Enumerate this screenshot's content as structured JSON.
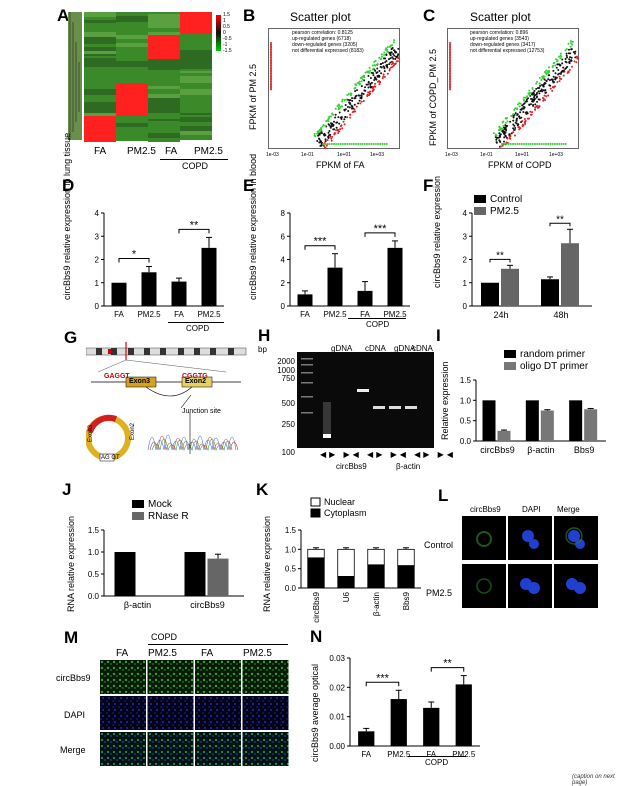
{
  "panels": {
    "A": {
      "letter": "A",
      "legend_ticks": [
        "1.5",
        "1",
        "0.5",
        "0",
        "-0.5",
        "-1",
        "-1.5"
      ],
      "xlabels": [
        "FA",
        "PM2.5",
        "FA",
        "PM2.5"
      ],
      "group": "COPD"
    },
    "B": {
      "letter": "B",
      "title": "Scatter plot",
      "stats": [
        "pearson correlation: 0.8125",
        "up-regulated genes (6718)",
        "down-regulated genes (3205)",
        "not differential expressed (8183)"
      ],
      "xlabel": "FPKM of FA",
      "ylabel": "FPKM of PM 2.5",
      "ticks": [
        "1e-03",
        "1e-01",
        "1e+01",
        "1e+03"
      ]
    },
    "C": {
      "letter": "C",
      "title": "Scatter plot",
      "stats": [
        "pearson correlation: 0.896",
        "up-regulated genes (3543)",
        "down-regulated genes (3417)",
        "not differential expressed (12753)"
      ],
      "xlabel": "FPKM of COPD",
      "ylabel": "FPKM of COPD_PM 2.5",
      "ticks": [
        "1e-03",
        "1e-01",
        "1e+01",
        "1e+03"
      ]
    },
    "D": {
      "letter": "D",
      "ylabel": "circBbs9 relative expression in lung tissue",
      "group": "COPD"
    },
    "E": {
      "letter": "E",
      "ylabel": "circBbs9 relative expression in blood",
      "group": "COPD"
    },
    "F": {
      "letter": "F",
      "ylabel": "circBbs9 relative expression",
      "legend": [
        "Control",
        "PM2.5"
      ]
    },
    "G": {
      "letter": "G",
      "texts": [
        "GAGGT",
        "CGGTG",
        "Exon3",
        "Exon2",
        "Junction site",
        "AG GT",
        "Exon3",
        "Exon2"
      ]
    },
    "H": {
      "letter": "H",
      "bp": "bp",
      "ladder": [
        "2000",
        "1000",
        "750",
        "500",
        "250",
        "100"
      ],
      "lanes": [
        "gDNA",
        "cDNA",
        "gDNA",
        "cDNA"
      ],
      "genes": [
        "circBbs9",
        "β-actin"
      ]
    },
    "I": {
      "letter": "I",
      "ylabel": "Relative expression",
      "legend": [
        "random primer",
        "oligo DT primer"
      ]
    },
    "J": {
      "letter": "J",
      "ylabel": "RNA relative expression",
      "legend": [
        "Mock",
        "RNase R"
      ]
    },
    "K": {
      "letter": "K",
      "ylabel": "RNA relative expression",
      "legend": [
        "Nuclear",
        "Cytoplasm"
      ]
    },
    "L": {
      "letter": "L",
      "cols": [
        "circBbs9",
        "DAPI",
        "Merge"
      ],
      "rows": [
        "Control",
        "PM2.5"
      ]
    },
    "M": {
      "letter": "M",
      "cols": [
        "FA",
        "PM2.5",
        "FA",
        "PM2.5"
      ],
      "rows": [
        "circBbs9",
        "DAPI",
        "Merge"
      ],
      "group": "COPD"
    },
    "N": {
      "letter": "N",
      "ylabel": "circBbs9 average optical",
      "group": "COPD"
    }
  },
  "footer": "(caption on next page)",
  "chart_data": [
    {
      "panel": "D",
      "type": "bar",
      "categories": [
        "FA",
        "PM2.5",
        "FA",
        "PM2.5"
      ],
      "values": [
        1.0,
        1.45,
        1.05,
        2.5
      ],
      "errors": [
        0,
        0.25,
        0.15,
        0.45
      ],
      "ylim": [
        0,
        4
      ],
      "yticks": [
        0,
        1,
        2,
        3,
        4
      ],
      "significance": [
        {
          "pair": [
            0,
            1
          ],
          "label": "*"
        },
        {
          "pair": [
            2,
            3
          ],
          "label": "**"
        }
      ]
    },
    {
      "panel": "E",
      "type": "bar",
      "categories": [
        "FA",
        "PM2.5",
        "FA",
        "PM2.5"
      ],
      "values": [
        1.0,
        3.3,
        1.3,
        5.0
      ],
      "errors": [
        0.3,
        1.2,
        0.8,
        0.6
      ],
      "ylim": [
        0,
        8
      ],
      "yticks": [
        0,
        2,
        4,
        6,
        8
      ],
      "significance": [
        {
          "pair": [
            0,
            1
          ],
          "label": "***"
        },
        {
          "pair": [
            2,
            3
          ],
          "label": "***"
        }
      ]
    },
    {
      "panel": "F",
      "type": "bar",
      "categories": [
        "24h",
        "48h"
      ],
      "series": [
        {
          "name": "Control",
          "values": [
            1.0,
            1.15
          ],
          "errors": [
            0,
            0.1
          ]
        },
        {
          "name": "PM2.5",
          "values": [
            1.6,
            2.7
          ],
          "errors": [
            0.15,
            0.6
          ]
        }
      ],
      "ylim": [
        0,
        4
      ],
      "yticks": [
        0,
        1,
        2,
        3,
        4
      ],
      "significance": [
        {
          "cat": 0,
          "label": "**"
        },
        {
          "cat": 1,
          "label": "**"
        }
      ]
    },
    {
      "panel": "I",
      "type": "bar",
      "categories": [
        "circBbs9",
        "β-actin",
        "Bbs9"
      ],
      "series": [
        {
          "name": "random primer",
          "values": [
            1.0,
            1.0,
            1.0
          ],
          "errors": [
            0,
            0,
            0
          ]
        },
        {
          "name": "oligo DT primer",
          "values": [
            0.25,
            0.75,
            0.78
          ],
          "errors": [
            0.02,
            0.02,
            0.02
          ]
        }
      ],
      "ylim": [
        0,
        1.5
      ],
      "yticks": [
        0.0,
        0.5,
        1.0,
        1.5
      ]
    },
    {
      "panel": "J",
      "type": "bar",
      "categories": [
        "β-actin",
        "circBbs9"
      ],
      "series": [
        {
          "name": "Mock",
          "values": [
            1.0,
            1.0
          ],
          "errors": [
            0,
            0
          ]
        },
        {
          "name": "RNase R",
          "values": [
            0.02,
            0.85
          ],
          "errors": [
            0,
            0.1
          ]
        }
      ],
      "ylim": [
        0,
        1.5
      ],
      "yticks": [
        0.0,
        0.5,
        1.0,
        1.5
      ]
    },
    {
      "panel": "K",
      "type": "bar",
      "stacked": true,
      "categories": [
        "circBbs9",
        "U6",
        "β-actin",
        "Bbs9"
      ],
      "series": [
        {
          "name": "Cytoplasm",
          "values": [
            0.78,
            0.3,
            0.6,
            0.58
          ],
          "errors": [
            0.05,
            0.03,
            0.03,
            0.03
          ]
        },
        {
          "name": "Nuclear",
          "values": [
            0.22,
            0.7,
            0.4,
            0.42
          ],
          "errors": [
            0,
            0,
            0,
            0
          ]
        }
      ],
      "ylim": [
        0,
        1.5
      ],
      "yticks": [
        0.0,
        0.5,
        1.0,
        1.5
      ]
    },
    {
      "panel": "N",
      "type": "bar",
      "categories": [
        "FA",
        "PM2.5",
        "FA",
        "PM2.5"
      ],
      "values": [
        0.005,
        0.016,
        0.013,
        0.021
      ],
      "errors": [
        0.001,
        0.003,
        0.002,
        0.003
      ],
      "ylim": [
        0,
        0.03
      ],
      "yticks": [
        0.0,
        0.01,
        0.02,
        0.03
      ],
      "significance": [
        {
          "pair": [
            0,
            1
          ],
          "label": "***"
        },
        {
          "pair": [
            2,
            3
          ],
          "label": "**"
        }
      ]
    }
  ]
}
